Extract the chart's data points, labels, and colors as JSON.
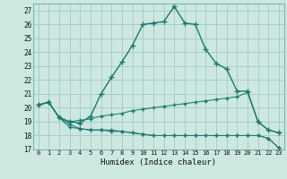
{
  "xlabel": "Humidex (Indice chaleur)",
  "background_color": "#cce8e0",
  "grid_color": "#aacccc",
  "line_color": "#1a7a6e",
  "xlim": [
    -0.5,
    23.5
  ],
  "ylim": [
    17,
    27.5
  ],
  "yticks": [
    17,
    18,
    19,
    20,
    21,
    22,
    23,
    24,
    25,
    26,
    27
  ],
  "xticks": [
    0,
    1,
    2,
    3,
    4,
    5,
    6,
    7,
    8,
    9,
    10,
    11,
    12,
    13,
    14,
    15,
    16,
    17,
    18,
    19,
    20,
    21,
    22,
    23
  ],
  "series": [
    {
      "x": [
        0,
        1,
        2,
        3,
        4,
        5,
        6,
        7,
        8,
        9,
        10,
        11,
        12,
        13,
        14,
        15,
        16,
        17,
        18,
        19,
        20,
        21,
        22,
        23
      ],
      "y": [
        20.2,
        20.4,
        19.3,
        19.0,
        18.9,
        19.4,
        21.0,
        22.2,
        23.3,
        24.5,
        26.0,
        26.1,
        26.2,
        27.3,
        26.1,
        26.0,
        24.2,
        23.2,
        22.8,
        21.2,
        21.2,
        19.0,
        18.4,
        18.2
      ]
    },
    {
      "x": [
        0,
        1,
        2,
        3,
        4,
        5,
        6,
        7,
        8,
        9,
        10,
        11,
        12,
        13,
        14,
        15,
        16,
        17,
        18,
        19,
        20,
        21,
        22,
        23
      ],
      "y": [
        20.2,
        20.4,
        19.3,
        19.0,
        19.1,
        19.2,
        19.4,
        19.5,
        19.6,
        19.8,
        19.9,
        20.0,
        20.1,
        20.2,
        20.3,
        20.4,
        20.5,
        20.6,
        20.7,
        20.8,
        21.1,
        19.0,
        18.4,
        18.2
      ]
    },
    {
      "x": [
        0,
        1,
        2,
        3,
        4,
        5,
        6,
        7,
        8,
        9,
        10,
        11,
        12,
        13,
        14,
        15,
        16,
        17,
        18,
        19,
        20,
        21,
        22,
        23
      ],
      "y": [
        20.2,
        20.4,
        19.3,
        18.6,
        18.5,
        18.4,
        18.4,
        18.3,
        18.3,
        18.2,
        18.1,
        18.0,
        18.0,
        18.0,
        18.0,
        18.0,
        18.0,
        18.0,
        18.0,
        18.0,
        18.0,
        18.0,
        17.8,
        17.1
      ]
    },
    {
      "x": [
        0,
        1,
        2,
        3,
        4,
        5,
        6,
        7,
        8,
        9,
        10,
        11,
        12,
        13,
        14,
        15,
        16,
        17,
        18,
        19,
        20,
        21,
        22,
        23
      ],
      "y": [
        20.2,
        20.4,
        19.3,
        18.8,
        18.5,
        18.4,
        18.4,
        18.4,
        18.3,
        18.2,
        18.1,
        18.0,
        18.0,
        18.0,
        18.0,
        18.0,
        18.0,
        18.0,
        18.0,
        18.0,
        18.0,
        18.0,
        17.8,
        17.1
      ]
    }
  ]
}
